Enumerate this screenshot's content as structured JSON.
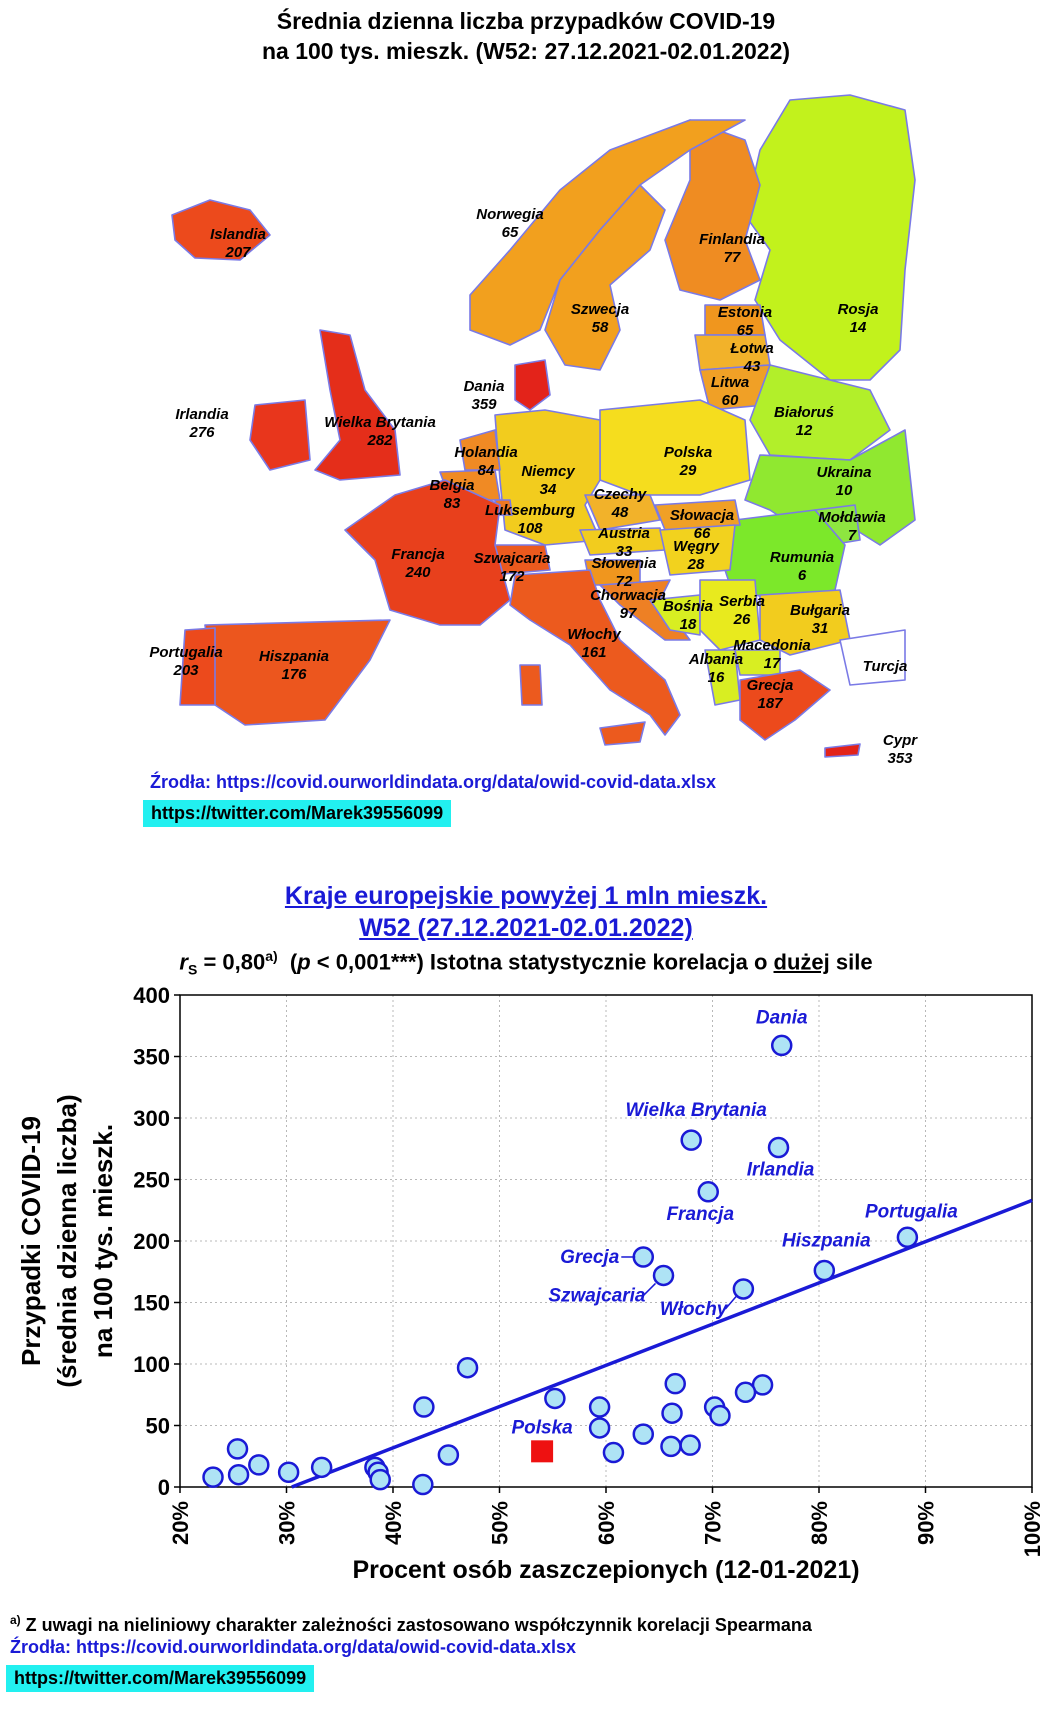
{
  "map": {
    "title_line1": "Średnia dzienna liczba przypadków COVID-19",
    "title_line2": "na 100 tys. mieszk. (W52: 27.12.2021-02.01.2022)",
    "countries": [
      {
        "name": "Islandia",
        "value": "207",
        "color": "#ec4a1c"
      },
      {
        "name": "Norwegia",
        "value": "65",
        "color": "#f2a01e"
      },
      {
        "name": "Finlandia",
        "value": "77",
        "color": "#ef8c22"
      },
      {
        "name": "Szwecja",
        "value": "58",
        "color": "#f2a01e"
      },
      {
        "name": "Rosja",
        "value": "14",
        "color": "#c2f21c"
      },
      {
        "name": "Estonia",
        "value": "65",
        "color": "#f0961e"
      },
      {
        "name": "Łotwa",
        "value": "43",
        "color": "#f2b22a"
      },
      {
        "name": "Litwa",
        "value": "60",
        "color": "#f0a026"
      },
      {
        "name": "Dania",
        "value": "359",
        "color": "#e3231a"
      },
      {
        "name": "Irlandia",
        "value": "276",
        "color": "#e8361c"
      },
      {
        "name": "Wielka Brytania",
        "value": "282",
        "color": "#e42e1a"
      },
      {
        "name": "Holandia",
        "value": "84",
        "color": "#f08a24"
      },
      {
        "name": "Białoruś",
        "value": "12",
        "color": "#b2ef2a"
      },
      {
        "name": "Niemcy",
        "value": "34",
        "color": "#f2cc1e"
      },
      {
        "name": "Polska",
        "value": "29",
        "color": "#f5dd1e"
      },
      {
        "name": "Belgia",
        "value": "83",
        "color": "#f08a24"
      },
      {
        "name": "Luksemburg",
        "value": "108",
        "color": "#ee7822"
      },
      {
        "name": "Czechy",
        "value": "48",
        "color": "#f2b22a"
      },
      {
        "name": "Ukraina",
        "value": "10",
        "color": "#90e830"
      },
      {
        "name": "Słowacja",
        "value": "66",
        "color": "#f0a026"
      },
      {
        "name": "Austria",
        "value": "33",
        "color": "#f2cc1e"
      },
      {
        "name": "Mołdawia",
        "value": "7",
        "color": "#8ee640"
      },
      {
        "name": "Francja",
        "value": "240",
        "color": "#e8401c"
      },
      {
        "name": "Szwajcaria",
        "value": "172",
        "color": "#ec5a1e"
      },
      {
        "name": "Węgry",
        "value": "28",
        "color": "#f2d21e"
      },
      {
        "name": "Słowenia",
        "value": "72",
        "color": "#f0961e"
      },
      {
        "name": "Rumunia",
        "value": "6",
        "color": "#7ce82a"
      },
      {
        "name": "Chorwacja",
        "value": "97",
        "color": "#ee8024"
      },
      {
        "name": "Bośnia",
        "value": "18",
        "color": "#d8ee22"
      },
      {
        "name": "Serbia",
        "value": "26",
        "color": "#e8ea1e"
      },
      {
        "name": "Bułgaria",
        "value": "31",
        "color": "#f2cc1e"
      },
      {
        "name": "Portugalia",
        "value": "203",
        "color": "#ec4a1c"
      },
      {
        "name": "Hiszpania",
        "value": "176",
        "color": "#ec561e"
      },
      {
        "name": "Włochy",
        "value": "161",
        "color": "#ec5a1e"
      },
      {
        "name": "Macedonia",
        "value": "17",
        "color": "#d8ee22"
      },
      {
        "name": "Albania",
        "value": "16",
        "color": "#d8ee22"
      },
      {
        "name": "Turcja",
        "value": "",
        "color": "#ffffff"
      },
      {
        "name": "Grecja",
        "value": "187",
        "color": "#ec4a1c"
      },
      {
        "name": "Cypr",
        "value": "353",
        "color": "#e3231a"
      }
    ],
    "source": "Źrodła: https://covid.ourworldindata.org/data/owid-covid-data.xlsx",
    "twitter": "https://twitter.com/Marek39556099"
  },
  "chart": {
    "title_line1": "Kraje europejskie powyżej 1 mln mieszk.",
    "title_line2": "W52 (27.12.2021-02.01.2022)",
    "stat_r": "r",
    "stat_r_sub": "S",
    "stat_eq": " = 0,80",
    "stat_sup": "a)",
    "stat_p_open": "  (",
    "stat_p": "p",
    "stat_rest": " < 0,001***) Istotna statystycznie korelacja o ",
    "stat_strength": "dużej",
    "stat_tail": " sile",
    "footnote_mark": "a)",
    "footnote": " Z uwagi na nieliniowy charakter zależności zastosowano współczynnik korelacji Spearmana",
    "source": "Źrodła: https://covid.ourworldindata.org/data/owid-covid-data.xlsx",
    "twitter": "https://twitter.com/Marek39556099"
  },
  "chart_data": {
    "type": "scatter",
    "xlabel": "Procent osób zaszczepionych (12-01-2021)",
    "ylabel": [
      "Przypadki COVID-19",
      "(średnia dzienna liczba)",
      "na 100 tys. mieszk."
    ],
    "xlim": [
      20,
      100
    ],
    "ylim": [
      0,
      400
    ],
    "x_ticks": [
      "20%",
      "30%",
      "40%",
      "50%",
      "60%",
      "70%",
      "80%",
      "90%",
      "100%"
    ],
    "y_ticks": [
      "0",
      "50",
      "100",
      "150",
      "200",
      "250",
      "300",
      "350",
      "400"
    ],
    "grid": true,
    "marker_color": "#aee3f5",
    "marker_edge": "#1a1ad6",
    "highlight_color": "#ee1111",
    "label_color": "#1a1ad6",
    "trend_line": {
      "x": [
        30.5,
        100
      ],
      "y": [
        0,
        233
      ]
    },
    "points": [
      {
        "x": 76.5,
        "y": 359,
        "label": "Dania"
      },
      {
        "x": 68.0,
        "y": 282,
        "label": "Wielka Brytania"
      },
      {
        "x": 76.2,
        "y": 276,
        "label": "Irlandia"
      },
      {
        "x": 69.6,
        "y": 240,
        "label": "Francja"
      },
      {
        "x": 88.3,
        "y": 203,
        "label": "Portugalia"
      },
      {
        "x": 80.5,
        "y": 176,
        "label": "Hiszpania"
      },
      {
        "x": 63.5,
        "y": 187,
        "label": "Grecja"
      },
      {
        "x": 65.4,
        "y": 172,
        "label": "Szwajcaria"
      },
      {
        "x": 72.9,
        "y": 161,
        "label": "Włochy"
      },
      {
        "x": 47.0,
        "y": 97
      },
      {
        "x": 55.2,
        "y": 72
      },
      {
        "x": 42.9,
        "y": 65
      },
      {
        "x": 59.4,
        "y": 65
      },
      {
        "x": 59.4,
        "y": 48
      },
      {
        "x": 66.5,
        "y": 84
      },
      {
        "x": 74.7,
        "y": 83
      },
      {
        "x": 73.1,
        "y": 77
      },
      {
        "x": 70.2,
        "y": 65
      },
      {
        "x": 66.2,
        "y": 60
      },
      {
        "x": 70.7,
        "y": 58
      },
      {
        "x": 63.5,
        "y": 43
      },
      {
        "x": 66.1,
        "y": 33
      },
      {
        "x": 67.9,
        "y": 34
      },
      {
        "x": 60.7,
        "y": 28
      },
      {
        "x": 45.2,
        "y": 26
      },
      {
        "x": 25.4,
        "y": 31
      },
      {
        "x": 27.4,
        "y": 18
      },
      {
        "x": 33.3,
        "y": 16
      },
      {
        "x": 38.3,
        "y": 16
      },
      {
        "x": 38.6,
        "y": 12
      },
      {
        "x": 30.2,
        "y": 12
      },
      {
        "x": 25.5,
        "y": 10
      },
      {
        "x": 23.1,
        "y": 8
      },
      {
        "x": 38.8,
        "y": 6
      },
      {
        "x": 42.8,
        "y": 2
      },
      {
        "x": 54.0,
        "y": 29,
        "label": "Polska",
        "highlight": true
      }
    ]
  }
}
